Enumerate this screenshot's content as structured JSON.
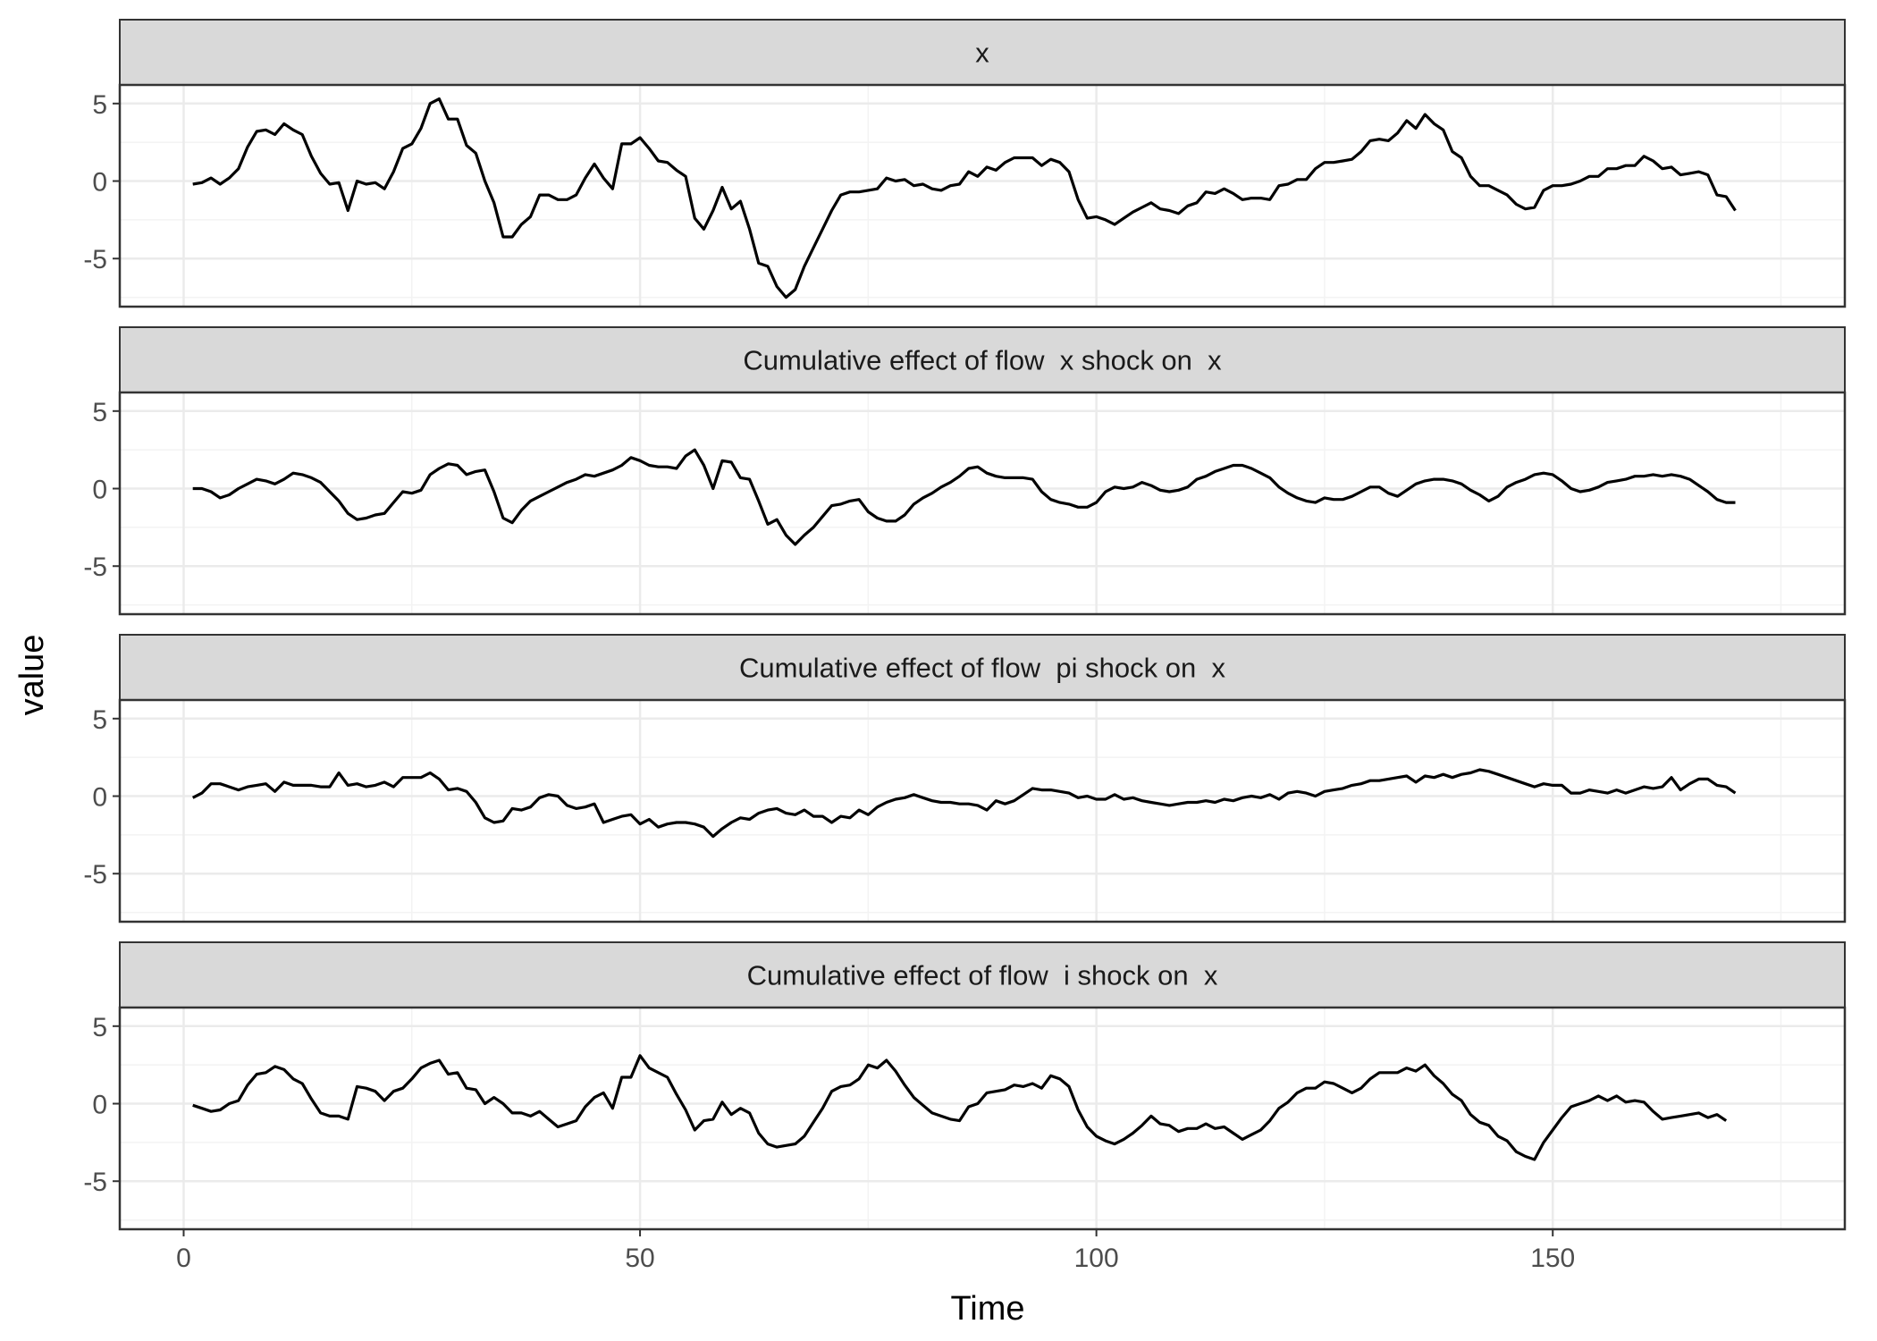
{
  "chart_data": {
    "type": "line",
    "facet_layout": "vertical",
    "xlabel": "Time",
    "ylabel": "value",
    "xlim": [
      1,
      170
    ],
    "ylim": [
      -8,
      6
    ],
    "x_ticks": [
      0,
      50,
      100,
      150
    ],
    "y_ticks": [
      5,
      0,
      -5
    ],
    "grid": true,
    "colors": {
      "line": "#000000",
      "strip": "#d9d9d9",
      "grid_major": "#ebebeb",
      "grid_minor": "#f3f3f3",
      "border": "#333333"
    },
    "x_start": 1,
    "panels": [
      {
        "strip": "x",
        "values": [
          -0.2,
          -0.1,
          0.2,
          -0.2,
          0.2,
          0.8,
          2.2,
          3.2,
          3.3,
          3.0,
          3.7,
          3.3,
          3.0,
          1.6,
          0.5,
          -0.2,
          -0.1,
          -1.9,
          0.0,
          -0.2,
          -0.1,
          -0.5,
          0.6,
          2.1,
          2.4,
          3.4,
          5.0,
          5.3,
          4.0,
          4.0,
          2.3,
          1.8,
          0.0,
          -1.4,
          -3.6,
          -3.6,
          -2.8,
          -2.3,
          -0.9,
          -0.9,
          -1.2,
          -1.2,
          -0.9,
          0.2,
          1.1,
          0.2,
          -0.5,
          2.4,
          2.4,
          2.8,
          2.1,
          1.3,
          1.2,
          0.7,
          0.3,
          -2.4,
          -3.1,
          -1.9,
          -0.4,
          -1.8,
          -1.3,
          -3.1,
          -5.3,
          -5.5,
          -6.8,
          -7.5,
          -7.0,
          -5.5,
          -4.3,
          -3.1,
          -1.9,
          -0.9,
          -0.7,
          -0.7,
          -0.6,
          -0.5,
          0.2,
          0.0,
          0.1,
          -0.3,
          -0.2,
          -0.5,
          -0.6,
          -0.3,
          -0.2,
          0.6,
          0.3,
          0.9,
          0.7,
          1.2,
          1.5,
          1.5,
          1.5,
          1.0,
          1.4,
          1.2,
          0.6,
          -1.2,
          -2.4,
          -2.3,
          -2.5,
          -2.8,
          -2.4,
          -2.0,
          -1.7,
          -1.4,
          -1.8,
          -1.9,
          -2.1,
          -1.6,
          -1.4,
          -0.7,
          -0.8,
          -0.5,
          -0.8,
          -1.2,
          -1.1,
          -1.1,
          -1.2,
          -0.3,
          -0.2,
          0.1,
          0.1,
          0.8,
          1.2,
          1.2,
          1.3,
          1.4,
          1.9,
          2.6,
          2.7,
          2.6,
          3.1,
          3.9,
          3.4,
          4.3,
          3.7,
          3.3,
          1.9,
          1.5,
          0.3,
          -0.3,
          -0.3,
          -0.6,
          -0.9,
          -1.5,
          -1.8,
          -1.7,
          -0.6,
          -0.3,
          -0.3,
          -0.2,
          0.0,
          0.3,
          0.3,
          0.8,
          0.8,
          1.0,
          1.0,
          1.6,
          1.3,
          0.8,
          0.9,
          0.4,
          0.5,
          0.6,
          0.4,
          -0.9,
          -1.0,
          -1.9
        ]
      },
      {
        "strip": "Cumulative effect of flow  x shock on  x",
        "values": [
          0.0,
          0.0,
          -0.2,
          -0.6,
          -0.4,
          0.0,
          0.3,
          0.6,
          0.5,
          0.3,
          0.6,
          1.0,
          0.9,
          0.7,
          0.4,
          -0.2,
          -0.8,
          -1.6,
          -2.0,
          -1.9,
          -1.7,
          -1.6,
          -0.9,
          -0.2,
          -0.3,
          -0.1,
          0.9,
          1.3,
          1.6,
          1.5,
          0.9,
          1.1,
          1.2,
          -0.2,
          -1.9,
          -2.2,
          -1.4,
          -0.8,
          -0.5,
          -0.2,
          0.1,
          0.4,
          0.6,
          0.9,
          0.8,
          1.0,
          1.2,
          1.5,
          2.0,
          1.8,
          1.5,
          1.4,
          1.4,
          1.3,
          2.1,
          2.5,
          1.5,
          0.0,
          1.8,
          1.7,
          0.7,
          0.6,
          -0.8,
          -2.3,
          -2.0,
          -3.0,
          -3.6,
          -3.0,
          -2.5,
          -1.8,
          -1.1,
          -1.0,
          -0.8,
          -0.7,
          -1.5,
          -1.9,
          -2.1,
          -2.1,
          -1.7,
          -1.0,
          -0.6,
          -0.3,
          0.1,
          0.4,
          0.8,
          1.3,
          1.4,
          1.0,
          0.8,
          0.7,
          0.7,
          0.7,
          0.6,
          -0.2,
          -0.7,
          -0.9,
          -1.0,
          -1.2,
          -1.2,
          -0.9,
          -0.2,
          0.1,
          0.0,
          0.1,
          0.4,
          0.2,
          -0.1,
          -0.2,
          -0.1,
          0.1,
          0.6,
          0.8,
          1.1,
          1.3,
          1.5,
          1.5,
          1.3,
          1.0,
          0.7,
          0.1,
          -0.3,
          -0.6,
          -0.8,
          -0.9,
          -0.6,
          -0.7,
          -0.7,
          -0.5,
          -0.2,
          0.1,
          0.1,
          -0.3,
          -0.5,
          -0.1,
          0.3,
          0.5,
          0.6,
          0.6,
          0.5,
          0.3,
          -0.1,
          -0.4,
          -0.8,
          -0.5,
          0.1,
          0.4,
          0.6,
          0.9,
          1.0,
          0.9,
          0.5,
          0.0,
          -0.2,
          -0.1,
          0.1,
          0.4,
          0.5,
          0.6,
          0.8,
          0.8,
          0.9,
          0.8,
          0.9,
          0.8,
          0.6,
          0.2,
          -0.2,
          -0.7,
          -0.9,
          -0.9
        ]
      },
      {
        "strip": "Cumulative effect of flow  pi shock on  x",
        "values": [
          -0.1,
          0.2,
          0.8,
          0.8,
          0.6,
          0.4,
          0.6,
          0.7,
          0.8,
          0.3,
          0.9,
          0.7,
          0.7,
          0.7,
          0.6,
          0.6,
          1.5,
          0.7,
          0.8,
          0.6,
          0.7,
          0.9,
          0.6,
          1.2,
          1.2,
          1.2,
          1.5,
          1.1,
          0.4,
          0.5,
          0.3,
          -0.4,
          -1.4,
          -1.7,
          -1.6,
          -0.8,
          -0.9,
          -0.7,
          -0.1,
          0.1,
          0.0,
          -0.6,
          -0.8,
          -0.7,
          -0.5,
          -1.7,
          -1.5,
          -1.3,
          -1.2,
          -1.8,
          -1.5,
          -2.0,
          -1.8,
          -1.7,
          -1.7,
          -1.8,
          -2.0,
          -2.6,
          -2.1,
          -1.7,
          -1.4,
          -1.5,
          -1.1,
          -0.9,
          -0.8,
          -1.1,
          -1.2,
          -0.9,
          -1.3,
          -1.3,
          -1.7,
          -1.3,
          -1.4,
          -0.9,
          -1.2,
          -0.7,
          -0.4,
          -0.2,
          -0.1,
          0.1,
          -0.1,
          -0.3,
          -0.4,
          -0.4,
          -0.5,
          -0.5,
          -0.6,
          -0.9,
          -0.3,
          -0.5,
          -0.3,
          0.1,
          0.5,
          0.4,
          0.4,
          0.3,
          0.2,
          -0.1,
          0.0,
          -0.2,
          -0.2,
          0.1,
          -0.2,
          -0.1,
          -0.3,
          -0.4,
          -0.5,
          -0.6,
          -0.5,
          -0.4,
          -0.4,
          -0.3,
          -0.4,
          -0.2,
          -0.3,
          -0.1,
          0.0,
          -0.1,
          0.1,
          -0.2,
          0.2,
          0.3,
          0.2,
          0.0,
          0.3,
          0.4,
          0.5,
          0.7,
          0.8,
          1.0,
          1.0,
          1.1,
          1.2,
          1.3,
          0.9,
          1.3,
          1.2,
          1.4,
          1.2,
          1.4,
          1.5,
          1.7,
          1.6,
          1.4,
          1.2,
          1.0,
          0.8,
          0.6,
          0.8,
          0.7,
          0.7,
          0.2,
          0.2,
          0.4,
          0.3,
          0.2,
          0.4,
          0.2,
          0.4,
          0.6,
          0.5,
          0.6,
          1.2,
          0.4,
          0.8,
          1.1,
          1.1,
          0.7,
          0.6,
          0.2
        ]
      },
      {
        "strip": "Cumulative effect of flow  i shock on  x",
        "values": [
          -0.1,
          -0.3,
          -0.5,
          -0.4,
          0.0,
          0.2,
          1.2,
          1.9,
          2.0,
          2.4,
          2.2,
          1.6,
          1.3,
          0.3,
          -0.6,
          -0.8,
          -0.8,
          -1.0,
          1.1,
          1.0,
          0.8,
          0.2,
          0.8,
          1.0,
          1.6,
          2.3,
          2.6,
          2.8,
          1.9,
          2.0,
          1.0,
          0.9,
          0.0,
          0.4,
          0.0,
          -0.6,
          -0.6,
          -0.8,
          -0.5,
          -1.0,
          -1.5,
          -1.3,
          -1.1,
          -0.2,
          0.4,
          0.7,
          -0.3,
          1.7,
          1.7,
          3.1,
          2.3,
          2.0,
          1.7,
          0.6,
          -0.4,
          -1.7,
          -1.1,
          -1.0,
          0.1,
          -0.7,
          -0.3,
          -0.6,
          -1.9,
          -2.6,
          -2.8,
          -2.7,
          -2.6,
          -2.1,
          -1.2,
          -0.3,
          0.8,
          1.1,
          1.2,
          1.6,
          2.5,
          2.3,
          2.8,
          2.1,
          1.2,
          0.4,
          -0.1,
          -0.6,
          -0.8,
          -1.0,
          -1.1,
          -0.2,
          0.0,
          0.7,
          0.8,
          0.9,
          1.2,
          1.1,
          1.3,
          1.0,
          1.8,
          1.6,
          1.1,
          -0.4,
          -1.5,
          -2.1,
          -2.4,
          -2.6,
          -2.3,
          -1.9,
          -1.4,
          -0.8,
          -1.3,
          -1.4,
          -1.8,
          -1.6,
          -1.6,
          -1.3,
          -1.6,
          -1.5,
          -1.9,
          -2.3,
          -2.0,
          -1.7,
          -1.1,
          -0.3,
          0.1,
          0.7,
          1.0,
          1.0,
          1.4,
          1.3,
          1.0,
          0.7,
          1.0,
          1.6,
          2.0,
          2.0,
          2.0,
          2.3,
          2.1,
          2.5,
          1.8,
          1.3,
          0.6,
          0.2,
          -0.7,
          -1.2,
          -1.4,
          -2.1,
          -2.4,
          -3.1,
          -3.4,
          -3.6,
          -2.5,
          -1.7,
          -0.9,
          -0.2,
          0.0,
          0.2,
          0.5,
          0.2,
          0.5,
          0.1,
          0.2,
          0.1,
          -0.5,
          -1.0,
          -0.9,
          -0.8,
          -0.7,
          -0.6,
          -0.9,
          -0.7,
          -1.1
        ]
      }
    ]
  }
}
